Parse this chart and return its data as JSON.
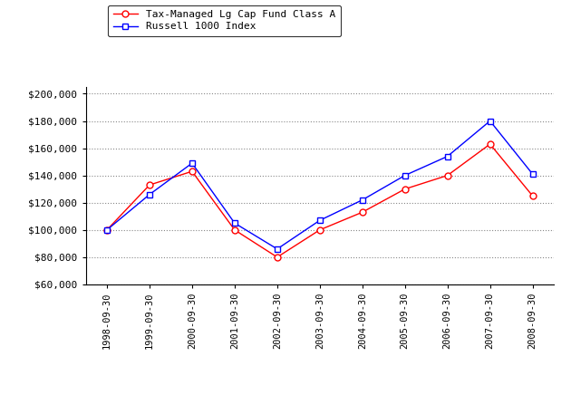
{
  "x_labels": [
    "1998-09-30",
    "1999-09-30",
    "2000-09-30",
    "2001-09-30",
    "2002-09-30",
    "2003-09-30",
    "2004-09-30",
    "2005-09-30",
    "2006-09-30",
    "2007-09-30",
    "2008-09-30"
  ],
  "fund_values": [
    100000,
    133000,
    143000,
    100000,
    80000,
    100000,
    113000,
    130000,
    140000,
    163000,
    125000
  ],
  "index_values": [
    100000,
    126000,
    149000,
    105000,
    86000,
    107000,
    122000,
    140000,
    154000,
    180000,
    141000
  ],
  "fund_label": "Tax-Managed Lg Cap Fund Class A",
  "index_label": "Russell 1000 Index",
  "fund_color": "#ff0000",
  "index_color": "#0000ff",
  "ylim_min": 60000,
  "ylim_max": 205000,
  "yticks": [
    60000,
    80000,
    100000,
    120000,
    140000,
    160000,
    180000,
    200000
  ],
  "bg_color": "#ffffff",
  "plot_bg_color": "#ffffff",
  "grid_color": "#888888",
  "font_family": "monospace"
}
